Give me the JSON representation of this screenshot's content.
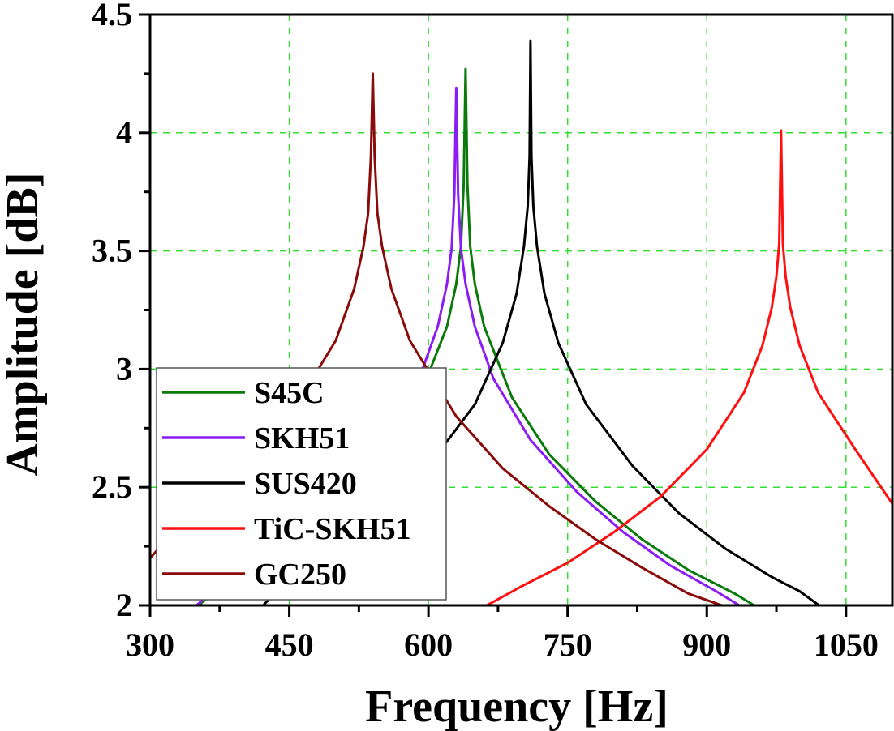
{
  "chart_data": {
    "type": "line",
    "title": "",
    "xlabel": "Frequency [Hz]",
    "ylabel": "Amplitude [dB]",
    "xlim": [
      300,
      1100
    ],
    "ylim": [
      2,
      4.5
    ],
    "xticks": [
      300,
      450,
      600,
      750,
      900,
      1050
    ],
    "xtick_labels": [
      "300",
      "450",
      "600",
      "750",
      "900",
      "1050"
    ],
    "yticks": [
      2,
      2.5,
      3,
      3.5,
      4,
      4.5
    ],
    "ytick_labels": [
      "2",
      "2.5",
      "3",
      "3.5",
      "4",
      "4.5"
    ],
    "x_minor_ticks": [
      375,
      525,
      675,
      825,
      975
    ],
    "y_minor_ticks": [
      2.25,
      2.75,
      3.25,
      3.75,
      4.25
    ],
    "grid": true,
    "grid_color": "#33dd33",
    "grid_style": "dashed",
    "legend_position": "bottom-left",
    "series": [
      {
        "name": "S45C",
        "color": "#0a7a0a",
        "peak": {
          "x": 640,
          "y": 4.27
        },
        "x": [
          352,
          400,
          450,
          500,
          550,
          590,
          620,
          630,
          635,
          638,
          640,
          642,
          645,
          650,
          660,
          690,
          730,
          780,
          830,
          880,
          930,
          951
        ],
        "y": [
          2.0,
          2.15,
          2.28,
          2.44,
          2.64,
          2.88,
          3.18,
          3.36,
          3.52,
          3.78,
          4.27,
          3.78,
          3.52,
          3.36,
          3.18,
          2.88,
          2.64,
          2.44,
          2.28,
          2.15,
          2.05,
          2.0
        ]
      },
      {
        "name": "SKH51",
        "color": "#8b1cf5",
        "peak": {
          "x": 630,
          "y": 4.19
        },
        "x": [
          350,
          400,
          450,
          500,
          550,
          590,
          610,
          620,
          625,
          628,
          630,
          632,
          635,
          640,
          650,
          670,
          710,
          760,
          810,
          860,
          910,
          935
        ],
        "y": [
          2.0,
          2.17,
          2.31,
          2.48,
          2.7,
          2.96,
          3.18,
          3.36,
          3.51,
          3.74,
          4.19,
          3.74,
          3.51,
          3.36,
          3.18,
          2.96,
          2.7,
          2.48,
          2.31,
          2.17,
          2.06,
          2.0
        ]
      },
      {
        "name": "SUS420",
        "color": "#000000",
        "peak": {
          "x": 710,
          "y": 4.39
        },
        "x": [
          422,
          450,
          500,
          550,
          600,
          650,
          680,
          695,
          703,
          707,
          709,
          710,
          711,
          713,
          717,
          725,
          740,
          770,
          820,
          870,
          920,
          970,
          1000,
          1021
        ],
        "y": [
          2.0,
          2.12,
          2.24,
          2.39,
          2.59,
          2.85,
          3.11,
          3.32,
          3.52,
          3.69,
          3.9,
          4.39,
          3.9,
          3.69,
          3.52,
          3.32,
          3.11,
          2.85,
          2.59,
          2.39,
          2.24,
          2.12,
          2.06,
          2.0
        ]
      },
      {
        "name": "TiC-SKH51",
        "color": "#ff1010",
        "peak": {
          "x": 980,
          "y": 4.01
        },
        "x": [
          663,
          700,
          750,
          800,
          850,
          900,
          940,
          960,
          970,
          975,
          978,
          980,
          982,
          985,
          990,
          1000,
          1020,
          1060,
          1100
        ],
        "y": [
          2.0,
          2.08,
          2.18,
          2.31,
          2.46,
          2.66,
          2.9,
          3.1,
          3.26,
          3.39,
          3.53,
          4.01,
          3.53,
          3.39,
          3.26,
          3.1,
          2.9,
          2.66,
          2.43
        ]
      },
      {
        "name": "GC250",
        "color": "#8b0a0a",
        "peak": {
          "x": 540,
          "y": 4.25
        },
        "x": [
          300,
          350,
          400,
          450,
          500,
          520,
          530,
          535,
          538,
          540,
          542,
          545,
          550,
          560,
          580,
          630,
          680,
          730,
          780,
          830,
          880,
          916
        ],
        "y": [
          2.2,
          2.42,
          2.58,
          2.8,
          3.12,
          3.34,
          3.52,
          3.66,
          3.9,
          4.25,
          3.9,
          3.66,
          3.52,
          3.34,
          3.12,
          2.8,
          2.58,
          2.42,
          2.28,
          2.16,
          2.05,
          2.0
        ]
      }
    ]
  }
}
